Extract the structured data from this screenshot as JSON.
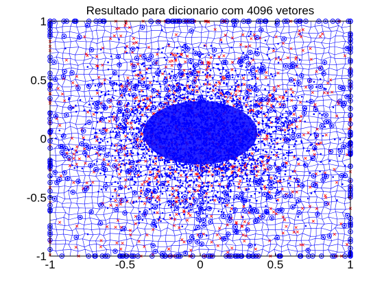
{
  "chart_data": {
    "type": "scatter",
    "title": "Resultado para dicionario com 4096 vetores",
    "xlabel": "",
    "ylabel": "",
    "xlim": [
      -1,
      1
    ],
    "ylim": [
      -1,
      1
    ],
    "grid": false,
    "x_ticks": [
      -1,
      -0.5,
      0,
      0.5,
      1
    ],
    "y_ticks": [
      -1,
      -0.5,
      0,
      0.5,
      1
    ],
    "x_tick_labels": [
      "-1",
      "-0.5",
      "0",
      "0.5",
      "1"
    ],
    "y_tick_labels": [
      "-1",
      "-0.5",
      "0",
      "0.5",
      "1"
    ],
    "codebook_size": 4096,
    "layers": [
      {
        "name": "",
        "marker": "x",
        "color": "#ff0000",
        "role": "training vectors"
      },
      {
        "name": "",
        "marker": "o",
        "color": "#0000ff",
        "role": "codebook vectors"
      },
      {
        "name": "",
        "marker": "line",
        "color": "#0000ff",
        "role": "voronoi cell edges"
      }
    ],
    "distribution": "dense near the origin (approx. Gaussian), clipped to the square [-1, 1]",
    "colors": {
      "axes": "#000000",
      "data_blue": "#0000ff",
      "data_red": "#ff0000",
      "background": "#ffffff"
    }
  }
}
